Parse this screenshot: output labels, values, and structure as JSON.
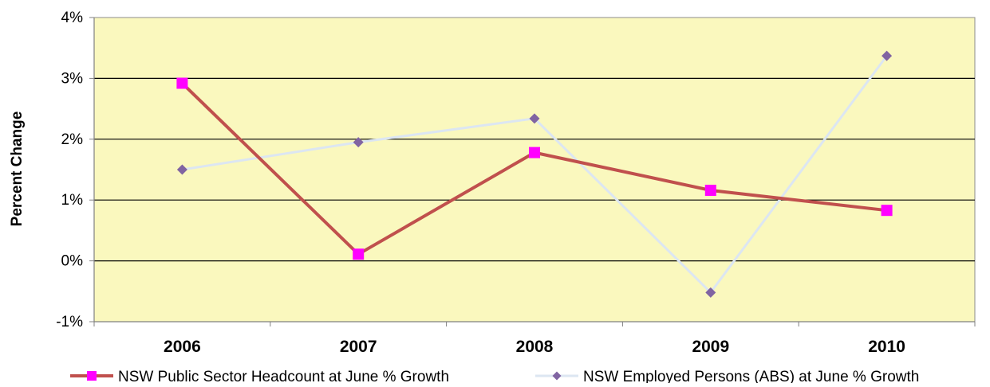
{
  "chart_data": {
    "type": "line",
    "title": "",
    "xlabel": "",
    "ylabel": "Percent Change",
    "categories": [
      "2006",
      "2007",
      "2008",
      "2009",
      "2010"
    ],
    "ylim": [
      -1,
      4
    ],
    "yticks": [
      -1,
      0,
      1,
      2,
      3,
      4
    ],
    "y_tick_suffix": "%",
    "grid": "horizontal",
    "legend_position": "bottom",
    "plot_background": "#FAF8BE",
    "series": [
      {
        "name": "NSW Public Sector Headcount at June % Growth",
        "values": [
          2.92,
          0.11,
          1.78,
          1.16,
          0.83
        ],
        "color": "#C0504D",
        "marker": "square",
        "marker_color": "#FF00FF"
      },
      {
        "name": "NSW Employed Persons (ABS) at June % Growth",
        "values": [
          1.5,
          1.95,
          2.34,
          -0.52,
          3.37
        ],
        "color": "#DCE6F2",
        "marker": "diamond",
        "marker_color": "#8064A2"
      }
    ]
  }
}
